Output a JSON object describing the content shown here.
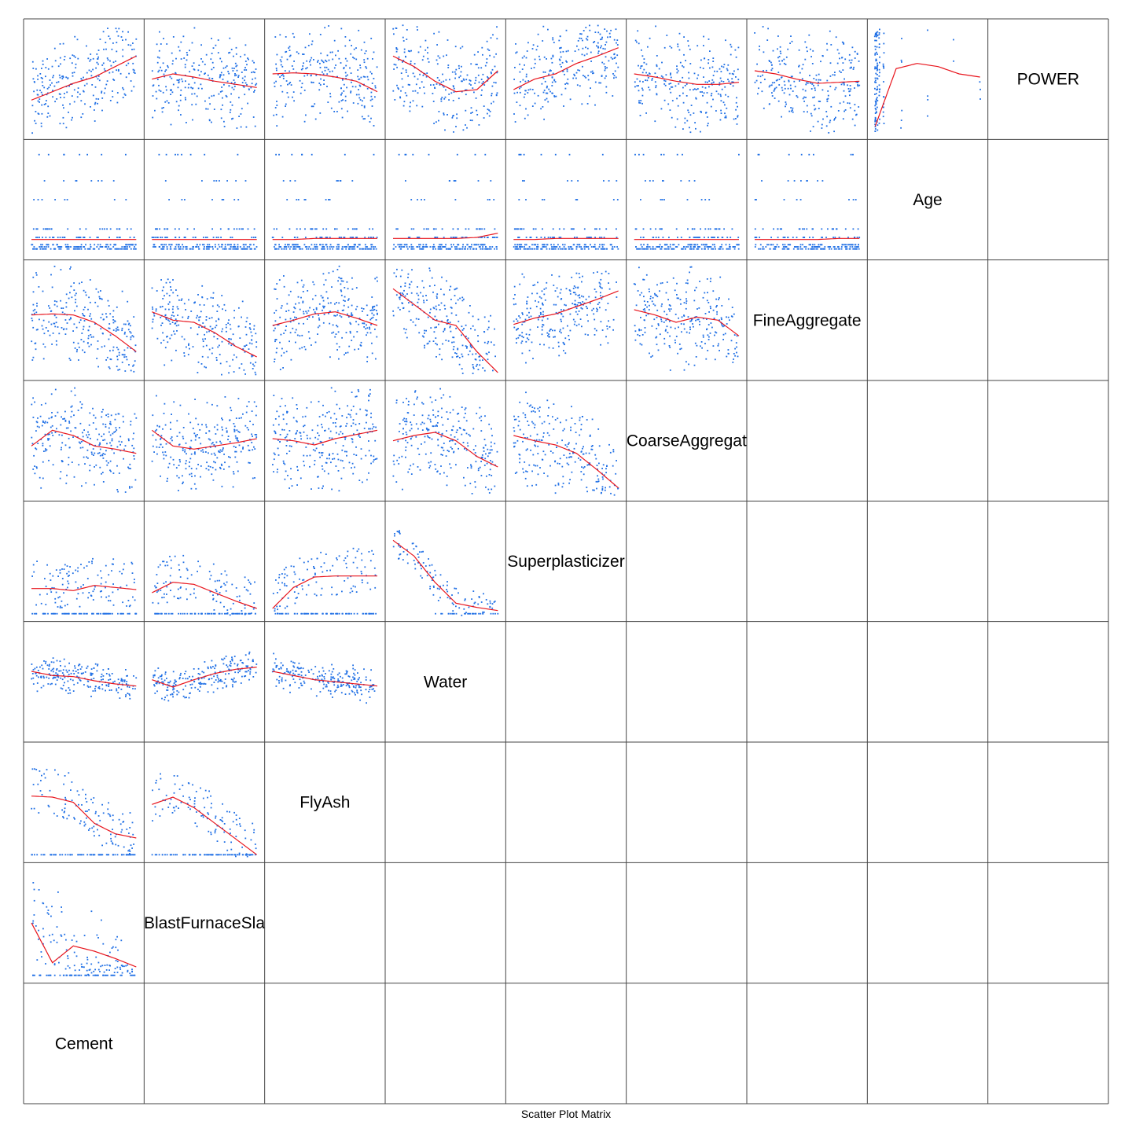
{
  "chart_data": {
    "type": "scatter",
    "kind": "scatter-plot-matrix",
    "caption": "Scatter Plot Matrix",
    "layout": "lower-left triangle; diagonal holds variable names; bottom-left to top-right",
    "variables": [
      "Cement",
      "BlastFurnaceSlag",
      "FlyAsh",
      "Water",
      "Superplasticizer",
      "CoarseAggregate",
      "FineAggregate",
      "Age",
      "POWER"
    ],
    "diagonal_labels": [
      "Cement",
      "BlastFurnaceSla",
      "FlyAsh",
      "Water",
      "Superplasticizer",
      "CoarseAggregat",
      "FineAggregate",
      "Age",
      "POWER"
    ],
    "colors": {
      "points": "#1f6fe5",
      "smoother": "#e8141c",
      "frame": "#444444"
    },
    "smoother": "loess",
    "grid": false,
    "axis_ticks": false,
    "legend": "none",
    "panels": [
      {
        "row": "BlastFurnaceSlag",
        "col": "Cement",
        "pattern": "fan",
        "trend": [
          0.5,
          0.12,
          0.28,
          0.23,
          0.16,
          0.08
        ]
      },
      {
        "row": "FlyAsh",
        "col": "Cement",
        "pattern": "zero-line",
        "trend": [
          0.56,
          0.55,
          0.5,
          0.3,
          0.2,
          0.16
        ]
      },
      {
        "row": "FlyAsh",
        "col": "BlastFurnaceSlag",
        "pattern": "zero-line",
        "trend": [
          0.48,
          0.55,
          0.45,
          0.3,
          0.15,
          0.0
        ]
      },
      {
        "row": "Water",
        "col": "Cement",
        "pattern": "band",
        "trend": [
          0.6,
          0.56,
          0.55,
          0.51,
          0.48,
          0.46
        ]
      },
      {
        "row": "Water",
        "col": "BlastFurnaceSlag",
        "pattern": "band",
        "trend": [
          0.52,
          0.45,
          0.52,
          0.58,
          0.62,
          0.64
        ]
      },
      {
        "row": "Water",
        "col": "FlyAsh",
        "pattern": "band",
        "trend": [
          0.6,
          0.56,
          0.52,
          0.5,
          0.48,
          0.46
        ]
      },
      {
        "row": "Superplasticizer",
        "col": "Cement",
        "pattern": "zero-line",
        "trend": [
          0.24,
          0.24,
          0.22,
          0.27,
          0.25,
          0.23
        ]
      },
      {
        "row": "Superplasticizer",
        "col": "BlastFurnaceSlag",
        "pattern": "zero-line",
        "trend": [
          0.2,
          0.3,
          0.28,
          0.2,
          0.12,
          0.05
        ]
      },
      {
        "row": "Superplasticizer",
        "col": "FlyAsh",
        "pattern": "zero-line",
        "trend": [
          0.05,
          0.25,
          0.35,
          0.36,
          0.36,
          0.36
        ]
      },
      {
        "row": "Superplasticizer",
        "col": "Water",
        "pattern": "decreasing",
        "trend": [
          0.7,
          0.55,
          0.3,
          0.1,
          0.06,
          0.03
        ]
      },
      {
        "row": "CoarseAggregate",
        "col": "Cement",
        "pattern": "scatter",
        "trend": [
          0.45,
          0.6,
          0.55,
          0.45,
          0.42,
          0.38
        ]
      },
      {
        "row": "CoarseAggregate",
        "col": "BlastFurnaceSlag",
        "pattern": "scatter",
        "trend": [
          0.6,
          0.45,
          0.42,
          0.45,
          0.48,
          0.52
        ]
      },
      {
        "row": "CoarseAggregate",
        "col": "FlyAsh",
        "pattern": "scatter",
        "trend": [
          0.52,
          0.5,
          0.46,
          0.52,
          0.56,
          0.6
        ]
      },
      {
        "row": "CoarseAggregate",
        "col": "Water",
        "pattern": "scatter",
        "trend": [
          0.5,
          0.55,
          0.58,
          0.5,
          0.35,
          0.25
        ]
      },
      {
        "row": "CoarseAggregate",
        "col": "Superplasticizer",
        "pattern": "scatter",
        "trend": [
          0.55,
          0.5,
          0.46,
          0.38,
          0.22,
          0.05
        ]
      },
      {
        "row": "FineAggregate",
        "col": "Cement",
        "pattern": "scatter",
        "trend": [
          0.55,
          0.56,
          0.55,
          0.48,
          0.35,
          0.2
        ]
      },
      {
        "row": "FineAggregate",
        "col": "BlastFurnaceSlag",
        "pattern": "scatter",
        "trend": [
          0.58,
          0.5,
          0.48,
          0.38,
          0.25,
          0.15
        ]
      },
      {
        "row": "FineAggregate",
        "col": "FlyAsh",
        "pattern": "scatter",
        "trend": [
          0.45,
          0.5,
          0.56,
          0.58,
          0.52,
          0.45
        ]
      },
      {
        "row": "FineAggregate",
        "col": "Water",
        "pattern": "scatter",
        "trend": [
          0.8,
          0.65,
          0.5,
          0.45,
          0.2,
          0.0
        ]
      },
      {
        "row": "FineAggregate",
        "col": "Superplasticizer",
        "pattern": "scatter",
        "trend": [
          0.46,
          0.52,
          0.56,
          0.63,
          0.7,
          0.78
        ]
      },
      {
        "row": "FineAggregate",
        "col": "CoarseAggregate",
        "pattern": "scatter",
        "trend": [
          0.6,
          0.55,
          0.48,
          0.53,
          0.5,
          0.35
        ]
      },
      {
        "row": "Age",
        "col": "Cement",
        "pattern": "levels",
        "trend": [
          0.12,
          0.12,
          0.12,
          0.12,
          0.12,
          0.12
        ]
      },
      {
        "row": "Age",
        "col": "BlastFurnaceSlag",
        "pattern": "levels",
        "trend": [
          0.12,
          0.12,
          0.12,
          0.12,
          0.12,
          0.12
        ]
      },
      {
        "row": "Age",
        "col": "FlyAsh",
        "pattern": "levels",
        "trend": [
          0.12,
          0.12,
          0.13,
          0.13,
          0.13,
          0.13
        ]
      },
      {
        "row": "Age",
        "col": "Water",
        "pattern": "levels",
        "trend": [
          0.13,
          0.13,
          0.13,
          0.13,
          0.14,
          0.18
        ]
      },
      {
        "row": "Age",
        "col": "Superplasticizer",
        "pattern": "levels",
        "trend": [
          0.12,
          0.12,
          0.13,
          0.13,
          0.13,
          0.13
        ]
      },
      {
        "row": "Age",
        "col": "CoarseAggregate",
        "pattern": "levels",
        "trend": [
          0.12,
          0.12,
          0.12,
          0.12,
          0.12,
          0.12
        ]
      },
      {
        "row": "Age",
        "col": "FineAggregate",
        "pattern": "levels",
        "trend": [
          0.12,
          0.12,
          0.12,
          0.12,
          0.13,
          0.13
        ]
      },
      {
        "row": "POWER",
        "col": "Cement",
        "pattern": "scatter",
        "trend": [
          0.3,
          0.38,
          0.46,
          0.52,
          0.62,
          0.72
        ]
      },
      {
        "row": "POWER",
        "col": "BlastFurnaceSlag",
        "pattern": "scatter",
        "trend": [
          0.5,
          0.55,
          0.52,
          0.48,
          0.45,
          0.42
        ]
      },
      {
        "row": "POWER",
        "col": "FlyAsh",
        "pattern": "scatter",
        "trend": [
          0.55,
          0.56,
          0.55,
          0.52,
          0.48,
          0.38
        ]
      },
      {
        "row": "POWER",
        "col": "Water",
        "pattern": "scatter",
        "trend": [
          0.72,
          0.62,
          0.48,
          0.38,
          0.4,
          0.58
        ]
      },
      {
        "row": "POWER",
        "col": "Superplasticizer",
        "pattern": "scatter",
        "trend": [
          0.4,
          0.5,
          0.55,
          0.65,
          0.72,
          0.8
        ]
      },
      {
        "row": "POWER",
        "col": "CoarseAggregate",
        "pattern": "scatter",
        "trend": [
          0.55,
          0.52,
          0.48,
          0.45,
          0.45,
          0.47
        ]
      },
      {
        "row": "POWER",
        "col": "FineAggregate",
        "pattern": "scatter",
        "trend": [
          0.58,
          0.55,
          0.5,
          0.46,
          0.47,
          0.48
        ]
      },
      {
        "row": "POWER",
        "col": "Age",
        "pattern": "vertical-stripes",
        "trend": [
          0.05,
          0.6,
          0.65,
          0.62,
          0.55,
          0.52
        ]
      }
    ]
  }
}
